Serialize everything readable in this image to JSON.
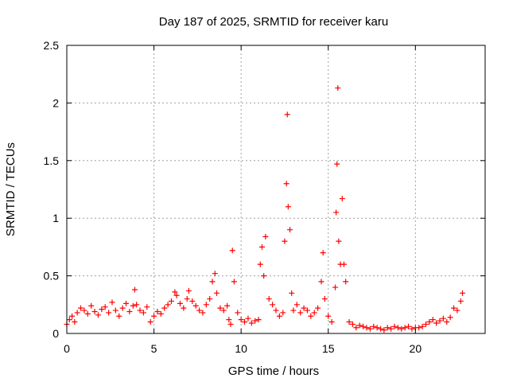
{
  "chart_data": {
    "type": "scatter",
    "title": "Day 187 of 2025, SRMTID for receiver karu",
    "xlabel": "GPS time / hours",
    "ylabel": "SRMTID / TECUs",
    "xlim": [
      0,
      24
    ],
    "ylim": [
      0,
      2.5
    ],
    "xticks": [
      0,
      5,
      10,
      15,
      20
    ],
    "xtick_labels": [
      "0",
      "5",
      "10",
      "15",
      "20"
    ],
    "yticks": [
      0,
      0.5,
      1,
      1.5,
      2,
      2.5
    ],
    "ytick_labels": [
      "0",
      "0.5",
      "1",
      "1.5",
      "2",
      "2.5"
    ],
    "grid": true,
    "marker": "+",
    "color": "#ff0000",
    "series": [
      {
        "name": "SRMTID",
        "x": [
          0.0,
          0.15,
          0.3,
          0.45,
          0.6,
          0.8,
          1.0,
          1.2,
          1.4,
          1.6,
          1.8,
          2.0,
          2.2,
          2.4,
          2.6,
          2.8,
          3.0,
          3.2,
          3.4,
          3.6,
          3.8,
          3.9,
          4.0,
          4.2,
          4.4,
          4.6,
          4.8,
          5.0,
          5.2,
          5.4,
          5.6,
          5.8,
          6.0,
          6.2,
          6.3,
          6.5,
          6.7,
          6.9,
          7.0,
          7.2,
          7.4,
          7.6,
          7.8,
          8.0,
          8.2,
          8.35,
          8.5,
          8.6,
          8.8,
          9.0,
          9.2,
          9.3,
          9.4,
          9.5,
          9.6,
          9.8,
          10.0,
          10.2,
          10.4,
          10.6,
          10.8,
          11.0,
          11.1,
          11.2,
          11.3,
          11.4,
          11.6,
          11.8,
          12.0,
          12.2,
          12.4,
          12.5,
          12.6,
          12.65,
          12.7,
          12.8,
          12.9,
          13.0,
          13.2,
          13.4,
          13.6,
          13.8,
          14.0,
          14.2,
          14.4,
          14.6,
          14.7,
          14.8,
          15.0,
          15.2,
          15.4,
          15.45,
          15.5,
          15.55,
          15.6,
          15.7,
          15.8,
          15.9,
          16.0,
          16.2,
          16.4,
          16.6,
          16.8,
          17.0,
          17.2,
          17.4,
          17.6,
          17.8,
          18.0,
          18.2,
          18.4,
          18.6,
          18.8,
          19.0,
          19.2,
          19.4,
          19.6,
          19.8,
          20.0,
          20.2,
          20.4,
          20.6,
          20.8,
          21.0,
          21.2,
          21.4,
          21.6,
          21.8,
          22.0,
          22.2,
          22.4,
          22.6,
          22.7
        ],
        "y": [
          0.08,
          0.12,
          0.15,
          0.1,
          0.18,
          0.22,
          0.2,
          0.17,
          0.24,
          0.19,
          0.16,
          0.21,
          0.23,
          0.18,
          0.27,
          0.2,
          0.15,
          0.22,
          0.26,
          0.19,
          0.24,
          0.38,
          0.25,
          0.2,
          0.18,
          0.23,
          0.1,
          0.15,
          0.19,
          0.17,
          0.22,
          0.25,
          0.28,
          0.36,
          0.33,
          0.26,
          0.22,
          0.3,
          0.37,
          0.28,
          0.24,
          0.2,
          0.18,
          0.25,
          0.3,
          0.45,
          0.52,
          0.35,
          0.22,
          0.2,
          0.24,
          0.12,
          0.08,
          0.72,
          0.45,
          0.18,
          0.12,
          0.1,
          0.13,
          0.09,
          0.11,
          0.12,
          0.6,
          0.75,
          0.5,
          0.84,
          0.3,
          0.25,
          0.2,
          0.15,
          0.18,
          0.8,
          1.3,
          1.9,
          1.1,
          0.9,
          0.35,
          0.2,
          0.25,
          0.18,
          0.22,
          0.2,
          0.15,
          0.18,
          0.22,
          0.45,
          0.7,
          0.3,
          0.15,
          0.1,
          0.4,
          1.05,
          1.47,
          2.13,
          0.8,
          0.6,
          1.17,
          0.6,
          0.45,
          0.1,
          0.08,
          0.05,
          0.07,
          0.06,
          0.05,
          0.04,
          0.06,
          0.05,
          0.04,
          0.03,
          0.05,
          0.04,
          0.06,
          0.05,
          0.04,
          0.05,
          0.06,
          0.04,
          0.05,
          0.05,
          0.06,
          0.08,
          0.1,
          0.12,
          0.09,
          0.11,
          0.13,
          0.1,
          0.14,
          0.22,
          0.2,
          0.28,
          0.35
        ]
      }
    ]
  }
}
